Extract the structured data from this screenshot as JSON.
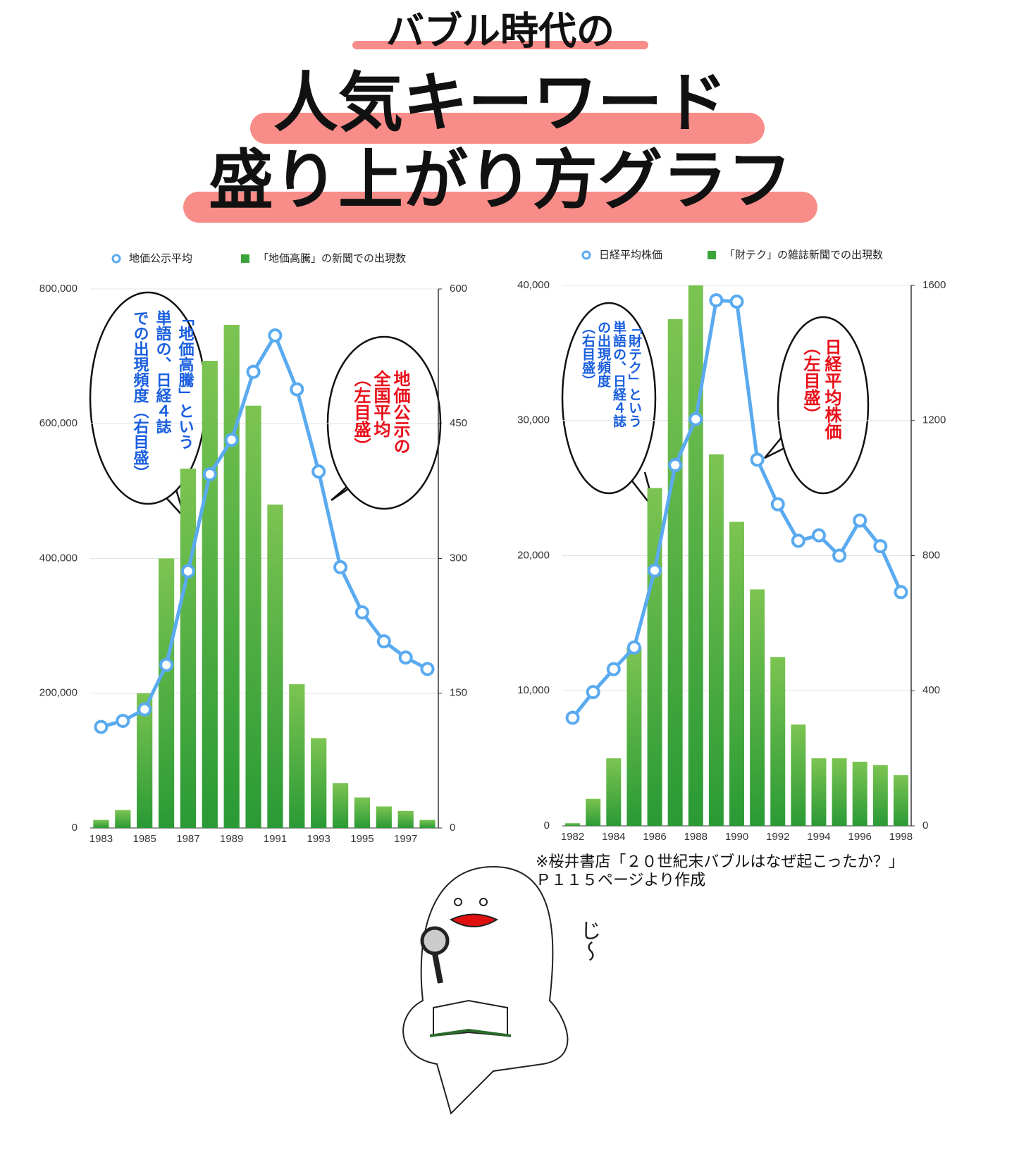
{
  "header": {
    "line1": "バブル時代の",
    "line2": "人気キーワード",
    "line3": "盛り上がり方グラフ"
  },
  "chart_data": [
    {
      "type": "bar-line",
      "categories": [
        "1983",
        null,
        "1985",
        null,
        "1987",
        null,
        "1989",
        null,
        "1991",
        null,
        "1993",
        null,
        "1995",
        null,
        "1997",
        null
      ],
      "series": [
        {
          "name": "地価公示平均",
          "color": "#5aaaf0",
          "type": "line",
          "values": [
            150000,
            159000,
            176000,
            242000,
            381000,
            525000,
            576000,
            677000,
            731000,
            651000,
            529000,
            387000,
            320000,
            277000,
            253000,
            236000
          ]
        },
        {
          "name": "「地価高騰」の新聞での出現数",
          "color": "#3aa53a",
          "type": "bar",
          "axis": "y2",
          "values": [
            9,
            20,
            150,
            300,
            400,
            520,
            560,
            470,
            360,
            160,
            100,
            50,
            34,
            24,
            19,
            9
          ]
        }
      ],
      "ylim": [
        0,
        800000
      ],
      "yticks": [
        0,
        {
          "value": 200000,
          "label": "200,000"
        },
        {
          "value": 400000,
          "label": "400,000"
        },
        {
          "value": 600000,
          "label": "600,000"
        },
        {
          "value": 800000,
          "label": "800,000"
        }
      ],
      "y2lim": [
        0,
        600
      ],
      "y2ticks": [
        0,
        150,
        300,
        450,
        600
      ],
      "grid": true,
      "annotations": [
        {
          "color": "#1a5fe0",
          "lines": [
            "「地価高騰」という",
            "単語の、日経４誌",
            "での出現頻度（右目盛）"
          ]
        },
        {
          "color": "#e8101a",
          "lines": [
            "地価公示の",
            "全国平均",
            "（左目盛）"
          ]
        }
      ]
    },
    {
      "type": "bar-line",
      "categories": [
        "1982",
        null,
        "1984",
        null,
        "1986",
        null,
        "1988",
        null,
        "1990",
        null,
        "1992",
        null,
        "1994",
        null,
        "1996",
        null,
        "1998"
      ],
      "series": [
        {
          "name": "日経平均株価",
          "color": "#5aaaf0",
          "type": "line",
          "values": [
            8000,
            9900,
            11600,
            13200,
            18900,
            26700,
            30100,
            38900,
            38800,
            27100,
            23800,
            21100,
            21500,
            20000,
            22600,
            20700,
            17300
          ]
        },
        {
          "name": "「財テク」の雑誌新聞での出現数",
          "color": "#3aa53a",
          "type": "bar",
          "axis": "y2",
          "values": [
            8,
            80,
            200,
            530,
            1000,
            1500,
            1600,
            1100,
            900,
            700,
            500,
            300,
            200,
            200,
            190,
            180,
            150
          ]
        }
      ],
      "ylim": [
        0,
        40000
      ],
      "yticks": [
        0,
        {
          "value": 10000,
          "label": "10,000"
        },
        {
          "value": 20000,
          "label": "20,000"
        },
        {
          "value": 30000,
          "label": "30,000"
        },
        {
          "value": 40000,
          "label": "40,000"
        }
      ],
      "y2lim": [
        0,
        1600
      ],
      "y2ticks": [
        0,
        400,
        800,
        1200,
        1600
      ],
      "grid": true,
      "annotations": [
        {
          "color": "#1a5fe0",
          "lines": [
            "「財テク」という",
            "単語の、日経４誌",
            "の出現頻度",
            "（右目盛）"
          ]
        },
        {
          "color": "#e8101a",
          "lines": [
            "日経平均株価",
            "（左目盛）"
          ]
        }
      ]
    }
  ],
  "note": [
    "※桜井書店「２０世紀末バブルはなぜ起こったか？」",
    "Ｐ１１５ページより作成"
  ],
  "speech": "じ〜"
}
